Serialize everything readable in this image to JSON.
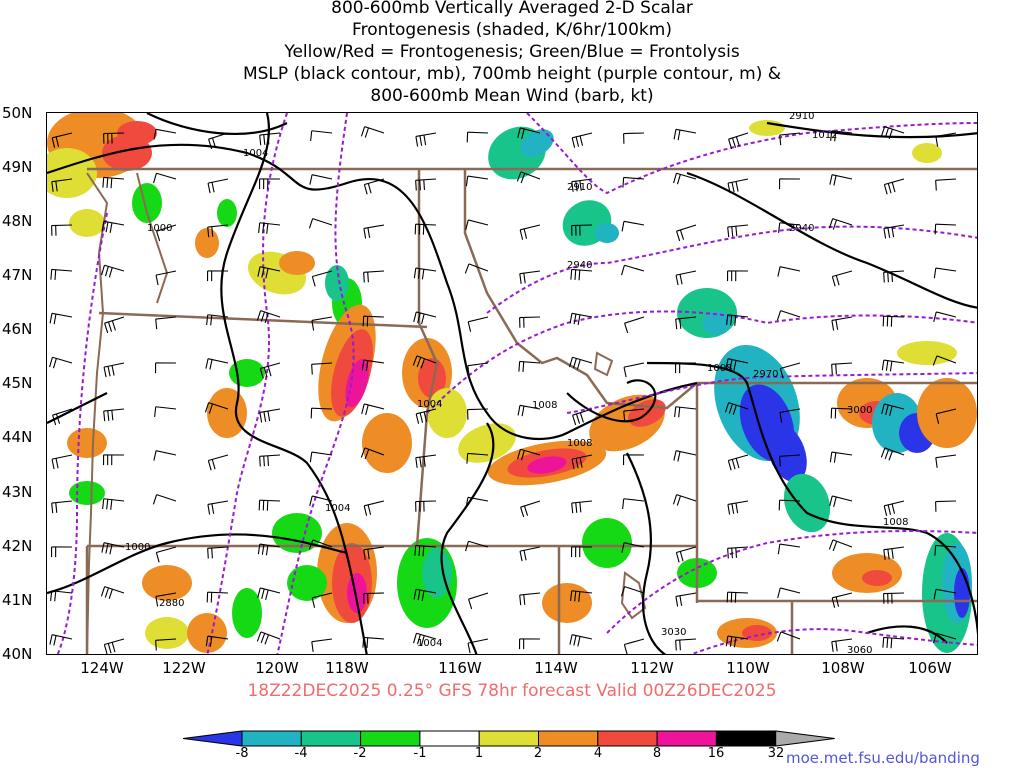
{
  "title": {
    "lines": [
      "800-600mb Vertically Averaged 2-D Scalar",
      "Frontogenesis (shaded, K/6hr/100km)",
      "Yellow/Red = Frontogenesis;  Green/Blue = Frontolysis",
      "MSLP (black contour, mb), 700mb height (purple contour, m) &",
      "800-600mb Mean Wind (barb, kt)"
    ]
  },
  "run_info": "18Z22DEC2025 0.25° GFS 78hr forecast Valid 00Z26DEC2025",
  "credit": "moe.met.fsu.edu/banding",
  "latitudes": [
    "50N",
    "49N",
    "48N",
    "47N",
    "46N",
    "45N",
    "44N",
    "43N",
    "42N",
    "41N",
    "40N"
  ],
  "longitudes": [
    "124W",
    "122W",
    "120W",
    "118W",
    "116W",
    "114W",
    "112W",
    "110W",
    "108W",
    "106W"
  ],
  "colorbar": {
    "labels": [
      "-8",
      "-4",
      "-2",
      "-1",
      "1",
      "2",
      "4",
      "8",
      "16",
      "32"
    ],
    "colors": [
      "#2a35e8",
      "#22b3c3",
      "#18c48a",
      "#16d916",
      "#ffffff",
      "#dede34",
      "#ee8c26",
      "#f04a3e",
      "#ee1499",
      "#000000",
      "#aaaaaa"
    ]
  },
  "mslp_labels": [
    "1004",
    "1012",
    "1000",
    "1004",
    "1008",
    "1008",
    "1004",
    "1008",
    "1008",
    "1000",
    "1004",
    "1008"
  ],
  "height_labels": [
    "2910",
    "2910",
    "2940",
    "2940",
    "2970",
    "3000",
    "2880",
    "3030",
    "3060"
  ]
}
